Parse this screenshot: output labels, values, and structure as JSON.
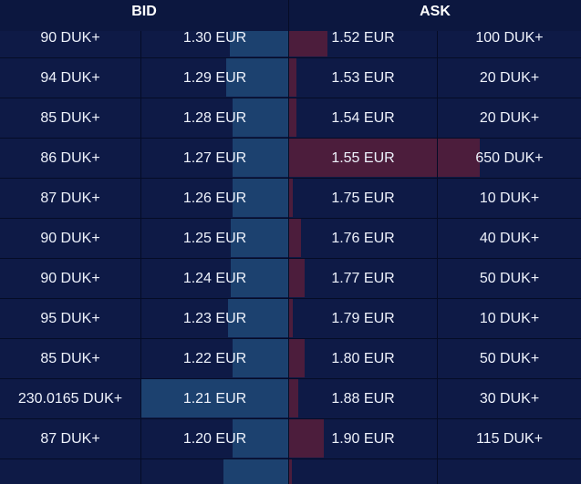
{
  "header": {
    "bid_label": "BID",
    "ask_label": "ASK"
  },
  "colors": {
    "background": "#0e1a46",
    "bid_bar": "#1c416f",
    "ask_bar": "#4c1d3c",
    "divider": "#050c26"
  },
  "rows": [
    {
      "bid_qty": "90 DUK+",
      "bid_price": "1.30 EUR",
      "ask_price": "1.52 EUR",
      "ask_qty": "100 DUK+",
      "bid_depth": 0.4,
      "ask_depth": 0.2
    },
    {
      "bid_qty": "94 DUK+",
      "bid_price": "1.29 EUR",
      "ask_price": "1.53 EUR",
      "ask_qty": "20 DUK+",
      "bid_depth": 0.42,
      "ask_depth": 0.04
    },
    {
      "bid_qty": "85 DUK+",
      "bid_price": "1.28 EUR",
      "ask_price": "1.54 EUR",
      "ask_qty": "20 DUK+",
      "bid_depth": 0.38,
      "ask_depth": 0.04
    },
    {
      "bid_qty": "86 DUK+",
      "bid_price": "1.27 EUR",
      "ask_price": "1.55 EUR",
      "ask_qty": "650 DUK+",
      "bid_depth": 0.38,
      "ask_depth": 1.0
    },
    {
      "bid_qty": "87 DUK+",
      "bid_price": "1.26 EUR",
      "ask_price": "1.75 EUR",
      "ask_qty": "10 DUK+",
      "bid_depth": 0.38,
      "ask_depth": 0.02
    },
    {
      "bid_qty": "90 DUK+",
      "bid_price": "1.25 EUR",
      "ask_price": "1.76 EUR",
      "ask_qty": "40 DUK+",
      "bid_depth": 0.39,
      "ask_depth": 0.06
    },
    {
      "bid_qty": "90 DUK+",
      "bid_price": "1.24 EUR",
      "ask_price": "1.77 EUR",
      "ask_qty": "50 DUK+",
      "bid_depth": 0.39,
      "ask_depth": 0.08
    },
    {
      "bid_qty": "95 DUK+",
      "bid_price": "1.23 EUR",
      "ask_price": "1.79 EUR",
      "ask_qty": "10 DUK+",
      "bid_depth": 0.41,
      "ask_depth": 0.02
    },
    {
      "bid_qty": "85 DUK+",
      "bid_price": "1.22 EUR",
      "ask_price": "1.80 EUR",
      "ask_qty": "50 DUK+",
      "bid_depth": 0.38,
      "ask_depth": 0.08
    },
    {
      "bid_qty": "230.0165 DUK+",
      "bid_price": "1.21 EUR",
      "ask_price": "1.88 EUR",
      "ask_qty": "30 DUK+",
      "bid_depth": 1.0,
      "ask_depth": 0.05
    },
    {
      "bid_qty": "87 DUK+",
      "bid_price": "1.20 EUR",
      "ask_price": "1.90 EUR",
      "ask_qty": "115 DUK+",
      "bid_depth": 0.38,
      "ask_depth": 0.18
    },
    {
      "bid_qty": "",
      "bid_price": "",
      "ask_price": "",
      "ask_qty": "",
      "bid_depth": 0.44,
      "ask_depth": 0.01
    }
  ]
}
